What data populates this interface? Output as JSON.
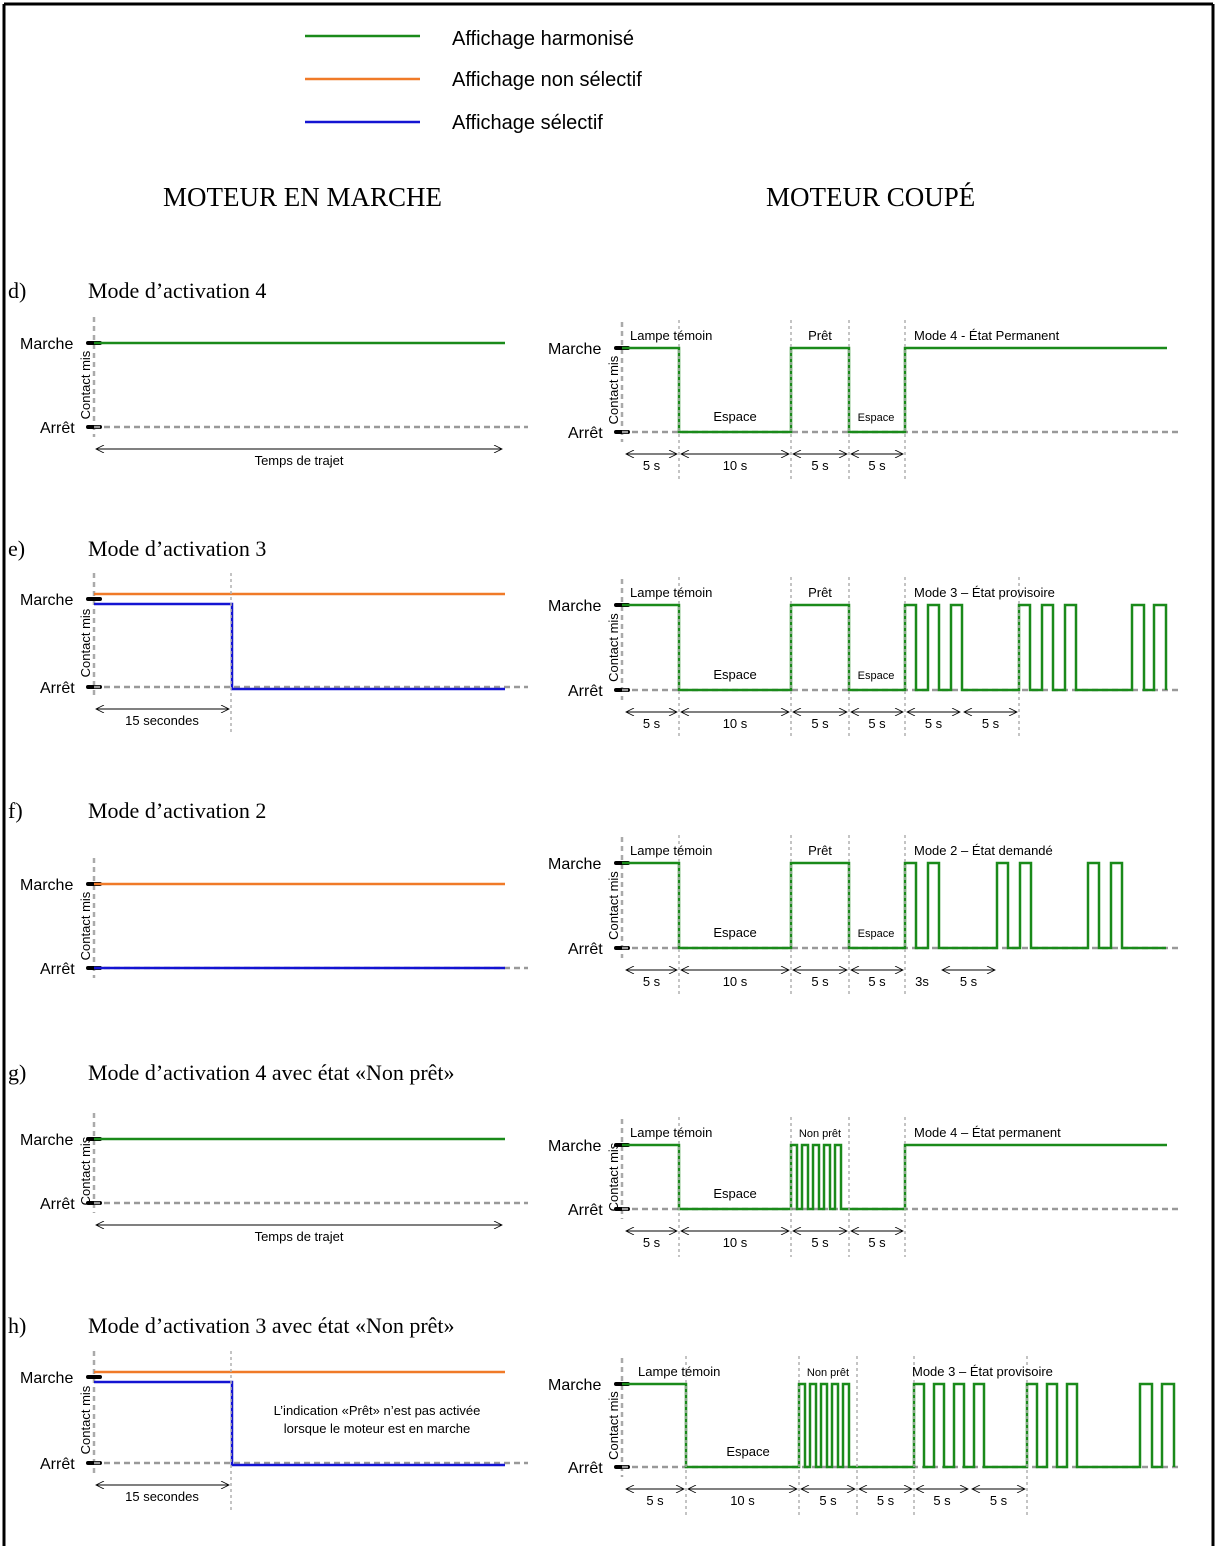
{
  "legend": [
    {
      "label": "Affichage harmonisé",
      "color": "#1a8a1a"
    },
    {
      "label": "Affichage non sélectif",
      "color": "#f07a28"
    },
    {
      "label": "Affichage sélectif",
      "color": "#1414d2"
    }
  ],
  "headers": {
    "left": "MOTEUR EN MARCHE",
    "right": "MOTEUR COUPÉ"
  },
  "axis": {
    "marche": "Marche",
    "arret": "Arrêt",
    "contact": "Contact mis"
  },
  "colors": {
    "green": "#1a8a1a",
    "orange": "#f07a28",
    "blue": "#1414d2",
    "dash": "#999999",
    "frame": "#000000"
  },
  "sections": [
    {
      "letter": "d)",
      "title": "Mode d’activation 4",
      "duration_label": "Temps de trajet",
      "right": {
        "lamp": "Lampe témoin",
        "gap": "Espace",
        "ready": "Prêt",
        "gap2": "Espace",
        "mode": "Mode 4 - État Permanent",
        "dims": [
          "5 s",
          "10 s",
          "5 s",
          "5 s"
        ]
      }
    },
    {
      "letter": "e)",
      "title": "Mode d’activation 3",
      "duration_label": "15 secondes",
      "right": {
        "lamp": "Lampe témoin",
        "gap": "Espace",
        "ready": "Prêt",
        "gap2": "Espace",
        "mode": "Mode 3 – État provisoire",
        "dims": [
          "5 s",
          "10 s",
          "5 s",
          "5 s",
          "5 s",
          "5 s"
        ]
      }
    },
    {
      "letter": "f)",
      "title": "Mode d’activation 2",
      "duration_label": "",
      "right": {
        "lamp": "Lampe témoin",
        "gap": "Espace",
        "ready": "Prêt",
        "gap2": "Espace",
        "mode": "Mode 2 – État demandé",
        "dims": [
          "5 s",
          "10 s",
          "5 s",
          "5 s",
          "3s",
          "5 s"
        ]
      }
    },
    {
      "letter": "g)",
      "title": "Mode d’activation 4 avec état «Non prêt»",
      "duration_label": "Temps de trajet",
      "right": {
        "lamp": "Lampe témoin",
        "gap": "Espace",
        "ready": "Non prêt",
        "gap2": "",
        "mode": "Mode 4 – État permanent",
        "dims": [
          "5 s",
          "10 s",
          "5 s",
          "5 s"
        ]
      }
    },
    {
      "letter": "h)",
      "title": "Mode d’activation 3 avec état «Non prêt»",
      "duration_label": "15 secondes",
      "note": [
        "L’indication «Prêt» n’est pas activée",
        "lorsque le moteur est en marche"
      ],
      "right": {
        "lamp": "Lampe témoin",
        "gap": "Espace",
        "ready": "Non prêt",
        "gap2": "",
        "mode": "Mode 3 – État provisoire",
        "dims": [
          "5 s",
          "10 s",
          "5 s",
          "5 s",
          "5 s",
          "5 s"
        ]
      }
    }
  ]
}
